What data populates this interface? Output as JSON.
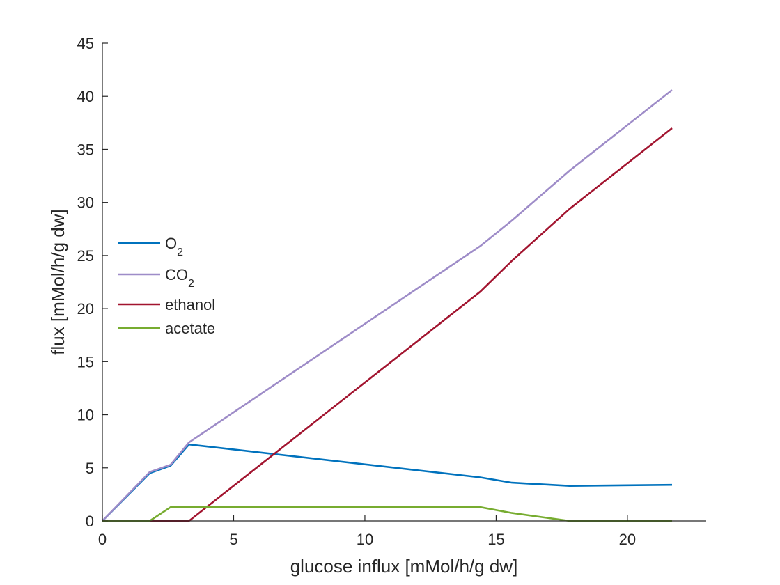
{
  "chart_data": {
    "type": "line",
    "xlabel": "glucose influx [mMol/h/g dw]",
    "ylabel": "flux [mMol/h/g dw]",
    "xlim": [
      0,
      23
    ],
    "ylim": [
      0,
      45
    ],
    "xticks": [
      0,
      5,
      10,
      15,
      20
    ],
    "yticks": [
      0,
      5,
      10,
      15,
      20,
      25,
      30,
      35,
      40,
      45
    ],
    "grid": false,
    "legend_position": "left",
    "series": [
      {
        "name": "O",
        "name_subscript": "2",
        "color": "#0072BD",
        "x": [
          0,
          1.8,
          2.6,
          3.3,
          14.4,
          15.6,
          17.8,
          21.7
        ],
        "y": [
          0,
          4.5,
          5.2,
          7.2,
          4.1,
          3.6,
          3.3,
          3.4
        ]
      },
      {
        "name": "CO",
        "name_subscript": "2",
        "color": "#9E8CC8",
        "x": [
          0,
          1.8,
          2.6,
          3.3,
          14.4,
          15.6,
          17.8,
          21.7
        ],
        "y": [
          0,
          4.6,
          5.3,
          7.4,
          25.9,
          28.3,
          33.0,
          40.6
        ]
      },
      {
        "name": "ethanol",
        "name_subscript": "",
        "color": "#A2142F",
        "x": [
          0,
          1.8,
          2.6,
          3.3,
          14.4,
          15.6,
          17.8,
          21.7
        ],
        "y": [
          0,
          0,
          0,
          0,
          21.6,
          24.5,
          29.4,
          37.0
        ]
      },
      {
        "name": "acetate",
        "name_subscript": "",
        "color": "#77AC30",
        "x": [
          0,
          1.8,
          2.6,
          3.3,
          14.4,
          15.6,
          17.8,
          21.7
        ],
        "y": [
          0,
          0,
          1.3,
          1.3,
          1.3,
          0.75,
          0,
          0
        ]
      }
    ]
  }
}
